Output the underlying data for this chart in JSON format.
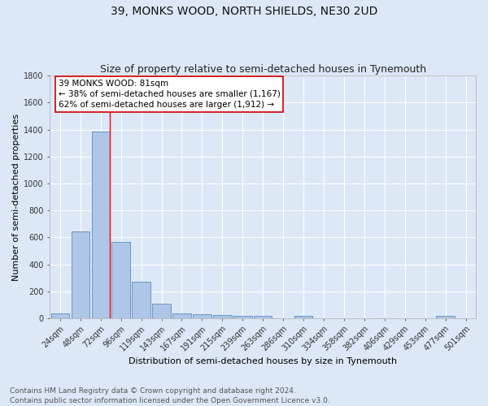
{
  "title": "39, MONKS WOOD, NORTH SHIELDS, NE30 2UD",
  "subtitle": "Size of property relative to semi-detached houses in Tynemouth",
  "xlabel": "Distribution of semi-detached houses by size in Tynemouth",
  "ylabel": "Number of semi-detached properties",
  "categories": [
    "24sqm",
    "48sqm",
    "72sqm",
    "96sqm",
    "119sqm",
    "143sqm",
    "167sqm",
    "191sqm",
    "215sqm",
    "239sqm",
    "263sqm",
    "286sqm",
    "310sqm",
    "334sqm",
    "358sqm",
    "382sqm",
    "406sqm",
    "429sqm",
    "453sqm",
    "477sqm",
    "501sqm"
  ],
  "values": [
    35,
    645,
    1385,
    565,
    270,
    110,
    38,
    28,
    22,
    18,
    18,
    0,
    18,
    0,
    0,
    0,
    0,
    0,
    0,
    18,
    0
  ],
  "bar_color": "#aec6e8",
  "bar_edge_color": "#5b8db8",
  "background_color": "#dce8f8",
  "grid_color": "#ffffff",
  "red_line_bin_index": 2,
  "annotation_text": "39 MONKS WOOD: 81sqm\n← 38% of semi-detached houses are smaller (1,167)\n62% of semi-detached houses are larger (1,912) →",
  "annotation_box_facecolor": "#ffffff",
  "annotation_box_edgecolor": "#cc0000",
  "ylim": [
    0,
    1800
  ],
  "yticks": [
    0,
    200,
    400,
    600,
    800,
    1000,
    1200,
    1400,
    1600,
    1800
  ],
  "footer_text": "Contains HM Land Registry data © Crown copyright and database right 2024.\nContains public sector information licensed under the Open Government Licence v3.0.",
  "title_fontsize": 10,
  "subtitle_fontsize": 9,
  "xlabel_fontsize": 8,
  "ylabel_fontsize": 8,
  "tick_fontsize": 7,
  "annotation_fontsize": 7.5,
  "footer_fontsize": 6.5
}
